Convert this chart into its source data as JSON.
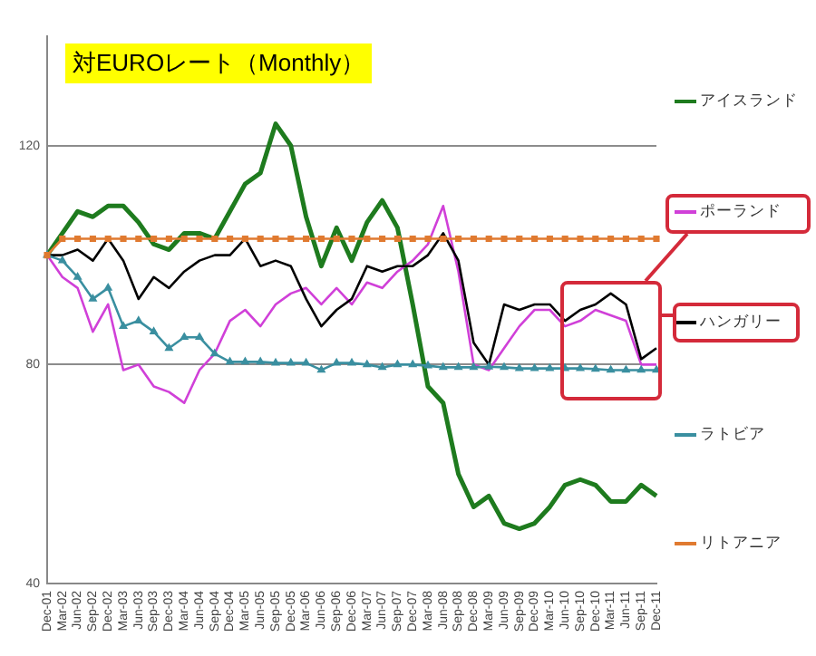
{
  "chart_data": {
    "type": "line",
    "title": "対EUROレート（Monthly）",
    "categories": [
      "Dec-01",
      "Mar-02",
      "Jun-02",
      "Sep-02",
      "Dec-02",
      "Mar-03",
      "Jun-03",
      "Sep-03",
      "Dec-03",
      "Mar-04",
      "Jun-04",
      "Sep-04",
      "Dec-04",
      "Mar-05",
      "Jun-05",
      "Sep-05",
      "Dec-05",
      "Mar-06",
      "Jun-06",
      "Sep-06",
      "Dec-06",
      "Mar-07",
      "Jun-07",
      "Sep-07",
      "Dec-07",
      "Mar-08",
      "Jun-08",
      "Sep-08",
      "Dec-08",
      "Mar-09",
      "Jun-09",
      "Sep-09",
      "Dec-09",
      "Mar-10",
      "Jun-10",
      "Sep-10",
      "Dec-10",
      "Mar-11",
      "Jun-11",
      "Sep-11",
      "Dec-11"
    ],
    "series": [
      {
        "name": "アイスランド",
        "color": "#1e7b1e",
        "values": [
          100,
          104,
          108,
          107,
          109,
          109,
          106,
          102,
          101,
          104,
          104,
          103,
          108,
          113,
          115,
          124,
          120,
          107,
          98,
          105,
          99,
          106,
          110,
          105,
          91,
          76,
          73,
          60,
          54,
          56,
          51,
          50,
          51,
          54,
          58,
          59,
          58,
          55,
          55,
          58,
          56
        ]
      },
      {
        "name": "ポーランド",
        "color": "#d040d8",
        "values": [
          100,
          96,
          94,
          86,
          91,
          79,
          80,
          76,
          75,
          73,
          79,
          82,
          88,
          90,
          87,
          91,
          93,
          94,
          91,
          94,
          91,
          95,
          94,
          97,
          99,
          102,
          109,
          97,
          80,
          79,
          83,
          87,
          90,
          90,
          87,
          88,
          90,
          89,
          88,
          80,
          80
        ]
      },
      {
        "name": "ハンガリー",
        "color": "#000000",
        "values": [
          100,
          100,
          101,
          99,
          103,
          99,
          92,
          96,
          94,
          97,
          99,
          100,
          100,
          103,
          98,
          99,
          98,
          92,
          87,
          90,
          92,
          98,
          97,
          98,
          98,
          100,
          104,
          99,
          84,
          80,
          91,
          90,
          91,
          91,
          88,
          90,
          91,
          93,
          91,
          81,
          83
        ]
      },
      {
        "name": "ラトビア",
        "color": "#3a8fa0",
        "marker": "triangle",
        "values": [
          100,
          99,
          96,
          92,
          94,
          87,
          88,
          86,
          83,
          85,
          85,
          82,
          80.5,
          80.5,
          80.5,
          80.3,
          80.3,
          80.3,
          79,
          80.3,
          80.3,
          80,
          79.5,
          80,
          80,
          79.8,
          79.5,
          79.5,
          79.5,
          79.6,
          79.5,
          79.3,
          79.3,
          79.3,
          79.3,
          79.3,
          79.2,
          79,
          79,
          79,
          79
        ]
      },
      {
        "name": "リトアニア",
        "color": "#e07a30",
        "marker": "square",
        "values": [
          100,
          103,
          103,
          103,
          103,
          103,
          103,
          103,
          103,
          103,
          103,
          103,
          103,
          103,
          103,
          103,
          103,
          103,
          103,
          103,
          103,
          103,
          103,
          103,
          103,
          103,
          103,
          103,
          103,
          103,
          103,
          103,
          103,
          103,
          103,
          103,
          103,
          103,
          103,
          103,
          103
        ]
      }
    ],
    "ylim": [
      40,
      140
    ],
    "yticks": [
      40,
      80,
      120
    ],
    "grid": "y",
    "line_style": "solid",
    "marker": "none",
    "legend": "right"
  }
}
